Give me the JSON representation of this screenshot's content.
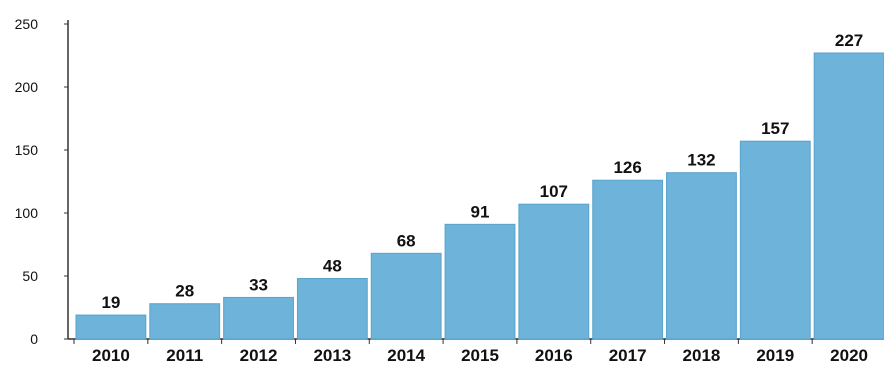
{
  "chart_data": {
    "type": "bar",
    "title": "",
    "xlabel": "",
    "ylabel": "",
    "categories": [
      "2010",
      "2011",
      "2012",
      "2013",
      "2014",
      "2015",
      "2016",
      "2017",
      "2018",
      "2019",
      "2020"
    ],
    "values": [
      19,
      28,
      33,
      48,
      68,
      91,
      107,
      126,
      132,
      157,
      227
    ],
    "data_labels": [
      "19",
      "28",
      "33",
      "48",
      "68",
      "91",
      "107",
      "126",
      "132",
      "157",
      "227"
    ],
    "y_ticks": [
      "0",
      "50",
      "100",
      "150",
      "200",
      "250"
    ],
    "ylim": [
      0,
      250
    ],
    "grid": false,
    "legend": "none",
    "colors": {
      "bar": "#6DB3DA",
      "bar_edge": "#5AA3CC",
      "axis": "#333333",
      "text": "#111111"
    }
  }
}
